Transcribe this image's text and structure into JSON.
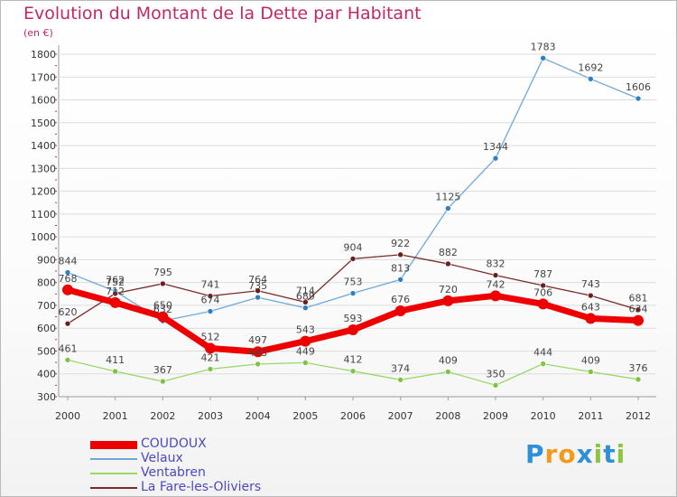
{
  "header": {
    "title": "Evolution du Montant de la Dette par Habitant",
    "unit": "(en €)"
  },
  "brand": {
    "letters": [
      "P",
      "r",
      "o",
      "x",
      "i",
      "t",
      "i"
    ],
    "colors": [
      "#2f8fd8",
      "#f29a1d",
      "#f29a1d",
      "#2f8fd8",
      "#8cc63f",
      "#2f8fd8",
      "#8cc63f"
    ]
  },
  "colors": {
    "axis": "#9a9a9a",
    "grid": "#dcdcdc",
    "tick_text": "#333333",
    "label_text": "#444444",
    "accent_ticks": "#c0286a"
  },
  "chart_data": {
    "type": "line",
    "title": "Evolution du Montant de la Dette par Habitant",
    "ylabel": "(en €)",
    "xlabel": "",
    "x": [
      "2000",
      "2001",
      "2002",
      "2003",
      "2004",
      "2005",
      "2006",
      "2007",
      "2008",
      "2009",
      "2010",
      "2011",
      "2012"
    ],
    "ylim": [
      300,
      1800
    ],
    "yticks": [
      300,
      400,
      500,
      600,
      700,
      800,
      900,
      1000,
      1100,
      1200,
      1300,
      1400,
      1500,
      1600,
      1700,
      1800
    ],
    "grid": true,
    "legend_position": "bottom-left",
    "series": [
      {
        "name": "COUDOUX",
        "color": "#ee0000",
        "marker": "#ee0000",
        "width": 7,
        "values": [
          768,
          712,
          650,
          512,
          497,
          543,
          593,
          676,
          720,
          742,
          706,
          643,
          634
        ],
        "labels": [
          "768",
          "712",
          "650",
          "512",
          "497",
          "543",
          "593",
          "676",
          "720",
          "742",
          "706",
          "643",
          "634"
        ]
      },
      {
        "name": "Velaux",
        "color": "#6fa8d8",
        "marker": "#2f7fc0",
        "width": 1.3,
        "values": [
          844,
          762,
          632,
          674,
          735,
          689,
          753,
          813,
          1125,
          1344,
          1783,
          1692,
          1606
        ],
        "labels": [
          "844",
          "762",
          "632",
          "674",
          "735",
          "689",
          "753",
          "813",
          "1125",
          "1344",
          "1783",
          "1692",
          "1606"
        ]
      },
      {
        "name": "Ventabren",
        "color": "#9ad86a",
        "marker": "#7cc544",
        "width": 1.3,
        "values": [
          461,
          411,
          367,
          421,
          443,
          449,
          412,
          374,
          409,
          350,
          444,
          409,
          376
        ],
        "labels": [
          "461",
          "411",
          "367",
          "421",
          "443",
          "449",
          "412",
          "374",
          "409",
          "350",
          "444",
          "409",
          "376"
        ]
      },
      {
        "name": "La Fare-les-Oliviers",
        "color": "#7a2a2a",
        "marker": "#6a1f1f",
        "width": 1.3,
        "values": [
          620,
          752,
          795,
          741,
          764,
          714,
          904,
          922,
          882,
          832,
          787,
          743,
          681
        ],
        "labels": [
          "620",
          "752",
          "795",
          "741",
          "764",
          "714",
          "904",
          "922",
          "882",
          "832",
          "787",
          "743",
          "681"
        ]
      }
    ]
  }
}
